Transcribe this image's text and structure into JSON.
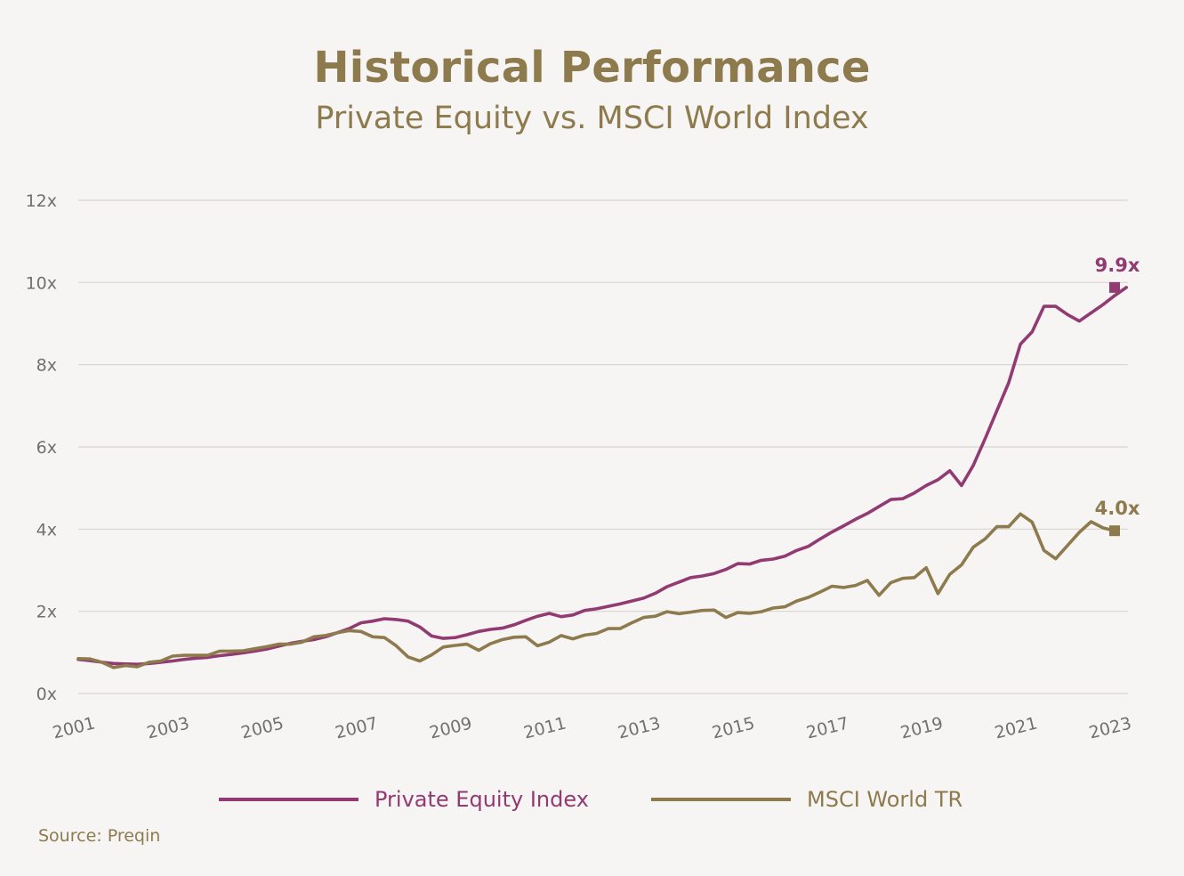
{
  "colors": {
    "background": "#f7f5f3",
    "accent_gold": "#8d7a4d",
    "accent_purple": "#923a72",
    "grid": "#d8d5cf",
    "axis_text": "#707070"
  },
  "chart_data": {
    "type": "line",
    "title": "Historical Performance",
    "subtitle": "Private Equity vs. MSCI World Index",
    "xlabel": "",
    "ylabel": "",
    "xlim": [
      2001,
      2023
    ],
    "ylim": [
      0,
      12
    ],
    "grid": true,
    "y_ticks": [
      {
        "value": 0,
        "label": "0x"
      },
      {
        "value": 2,
        "label": "2x"
      },
      {
        "value": 4,
        "label": "4x"
      },
      {
        "value": 6,
        "label": "6x"
      },
      {
        "value": 8,
        "label": "8x"
      },
      {
        "value": 10,
        "label": "10x"
      },
      {
        "value": 12,
        "label": "12x"
      }
    ],
    "x_ticks": [
      {
        "value": 2001,
        "label": "2001"
      },
      {
        "value": 2003,
        "label": "2003"
      },
      {
        "value": 2005,
        "label": "2005"
      },
      {
        "value": 2007,
        "label": "2007"
      },
      {
        "value": 2009,
        "label": "2009"
      },
      {
        "value": 2011,
        "label": "2011"
      },
      {
        "value": 2013,
        "label": "2013"
      },
      {
        "value": 2015,
        "label": "2015"
      },
      {
        "value": 2017,
        "label": "2017"
      },
      {
        "value": 2019,
        "label": "2019"
      },
      {
        "value": 2021,
        "label": "2021"
      },
      {
        "value": 2023,
        "label": "2023"
      }
    ],
    "legend_position": "bottom",
    "series": [
      {
        "name": "Private Equity Index",
        "color": "#923a72",
        "end_label": "9.9x",
        "points": [
          [
            2001.0,
            0.83
          ],
          [
            2001.25,
            0.8
          ],
          [
            2001.5,
            0.76
          ],
          [
            2001.75,
            0.73
          ],
          [
            2002.0,
            0.72
          ],
          [
            2002.25,
            0.71
          ],
          [
            2002.5,
            0.73
          ],
          [
            2002.75,
            0.76
          ],
          [
            2003.0,
            0.79
          ],
          [
            2003.25,
            0.83
          ],
          [
            2003.5,
            0.86
          ],
          [
            2003.75,
            0.88
          ],
          [
            2004.0,
            0.92
          ],
          [
            2004.25,
            0.95
          ],
          [
            2004.5,
            0.99
          ],
          [
            2004.75,
            1.03
          ],
          [
            2005.0,
            1.08
          ],
          [
            2005.25,
            1.15
          ],
          [
            2005.5,
            1.22
          ],
          [
            2005.75,
            1.27
          ],
          [
            2006.0,
            1.31
          ],
          [
            2006.25,
            1.38
          ],
          [
            2006.5,
            1.48
          ],
          [
            2006.75,
            1.58
          ],
          [
            2007.0,
            1.72
          ],
          [
            2007.25,
            1.76
          ],
          [
            2007.5,
            1.82
          ],
          [
            2007.75,
            1.8
          ],
          [
            2008.0,
            1.76
          ],
          [
            2008.25,
            1.62
          ],
          [
            2008.5,
            1.4
          ],
          [
            2008.75,
            1.34
          ],
          [
            2009.0,
            1.36
          ],
          [
            2009.25,
            1.43
          ],
          [
            2009.5,
            1.51
          ],
          [
            2009.75,
            1.56
          ],
          [
            2010.0,
            1.59
          ],
          [
            2010.25,
            1.67
          ],
          [
            2010.5,
            1.78
          ],
          [
            2010.75,
            1.88
          ],
          [
            2011.0,
            1.95
          ],
          [
            2011.25,
            1.87
          ],
          [
            2011.5,
            1.91
          ],
          [
            2011.75,
            2.02
          ],
          [
            2012.0,
            2.06
          ],
          [
            2012.25,
            2.12
          ],
          [
            2012.5,
            2.18
          ],
          [
            2012.75,
            2.25
          ],
          [
            2013.0,
            2.32
          ],
          [
            2013.25,
            2.44
          ],
          [
            2013.5,
            2.6
          ],
          [
            2013.75,
            2.71
          ],
          [
            2014.0,
            2.82
          ],
          [
            2014.25,
            2.86
          ],
          [
            2014.5,
            2.92
          ],
          [
            2014.75,
            3.02
          ],
          [
            2015.0,
            3.16
          ],
          [
            2015.25,
            3.15
          ],
          [
            2015.5,
            3.24
          ],
          [
            2015.75,
            3.27
          ],
          [
            2016.0,
            3.34
          ],
          [
            2016.25,
            3.48
          ],
          [
            2016.5,
            3.58
          ],
          [
            2016.75,
            3.76
          ],
          [
            2017.0,
            3.93
          ],
          [
            2017.25,
            4.08
          ],
          [
            2017.5,
            4.24
          ],
          [
            2017.75,
            4.38
          ],
          [
            2018.0,
            4.55
          ],
          [
            2018.25,
            4.72
          ],
          [
            2018.5,
            4.74
          ],
          [
            2018.75,
            4.88
          ],
          [
            2019.0,
            5.06
          ],
          [
            2019.25,
            5.2
          ],
          [
            2019.5,
            5.42
          ],
          [
            2019.75,
            5.06
          ],
          [
            2020.0,
            5.55
          ],
          [
            2020.25,
            6.2
          ],
          [
            2020.5,
            6.88
          ],
          [
            2020.75,
            7.56
          ],
          [
            2021.0,
            8.5
          ],
          [
            2021.25,
            8.8
          ],
          [
            2021.5,
            9.42
          ],
          [
            2021.75,
            9.42
          ],
          [
            2022.0,
            9.22
          ],
          [
            2022.25,
            9.06
          ],
          [
            2022.5,
            9.26
          ],
          [
            2022.75,
            9.46
          ],
          [
            2023.0,
            9.68
          ],
          [
            2023.25,
            9.88
          ]
        ]
      },
      {
        "name": "MSCI World TR",
        "color": "#8d7a4d",
        "end_label": "4.0x",
        "points": [
          [
            2001.0,
            0.85
          ],
          [
            2001.25,
            0.84
          ],
          [
            2001.5,
            0.76
          ],
          [
            2001.75,
            0.63
          ],
          [
            2002.0,
            0.68
          ],
          [
            2002.25,
            0.65
          ],
          [
            2002.5,
            0.76
          ],
          [
            2002.75,
            0.79
          ],
          [
            2003.0,
            0.91
          ],
          [
            2003.25,
            0.93
          ],
          [
            2003.5,
            0.93
          ],
          [
            2003.75,
            0.93
          ],
          [
            2004.0,
            1.03
          ],
          [
            2004.25,
            1.03
          ],
          [
            2004.5,
            1.04
          ],
          [
            2004.75,
            1.09
          ],
          [
            2005.0,
            1.14
          ],
          [
            2005.25,
            1.2
          ],
          [
            2005.5,
            1.2
          ],
          [
            2005.75,
            1.25
          ],
          [
            2006.0,
            1.38
          ],
          [
            2006.25,
            1.41
          ],
          [
            2006.5,
            1.48
          ],
          [
            2006.75,
            1.53
          ],
          [
            2007.0,
            1.51
          ],
          [
            2007.25,
            1.38
          ],
          [
            2007.5,
            1.36
          ],
          [
            2007.75,
            1.16
          ],
          [
            2008.0,
            0.89
          ],
          [
            2008.25,
            0.79
          ],
          [
            2008.5,
            0.94
          ],
          [
            2008.75,
            1.13
          ],
          [
            2009.0,
            1.17
          ],
          [
            2009.25,
            1.2
          ],
          [
            2009.5,
            1.05
          ],
          [
            2009.75,
            1.21
          ],
          [
            2010.0,
            1.31
          ],
          [
            2010.25,
            1.37
          ],
          [
            2010.5,
            1.38
          ],
          [
            2010.75,
            1.16
          ],
          [
            2011.0,
            1.25
          ],
          [
            2011.25,
            1.41
          ],
          [
            2011.5,
            1.33
          ],
          [
            2011.75,
            1.42
          ],
          [
            2012.0,
            1.46
          ],
          [
            2012.25,
            1.58
          ],
          [
            2012.5,
            1.58
          ],
          [
            2012.75,
            1.72
          ],
          [
            2013.0,
            1.85
          ],
          [
            2013.25,
            1.88
          ],
          [
            2013.5,
            1.99
          ],
          [
            2013.75,
            1.94
          ],
          [
            2014.0,
            1.98
          ],
          [
            2014.25,
            2.02
          ],
          [
            2014.5,
            2.03
          ],
          [
            2014.75,
            1.85
          ],
          [
            2015.0,
            1.97
          ],
          [
            2015.25,
            1.95
          ],
          [
            2015.5,
            1.99
          ],
          [
            2015.75,
            2.08
          ],
          [
            2016.0,
            2.11
          ],
          [
            2016.25,
            2.25
          ],
          [
            2016.5,
            2.34
          ],
          [
            2016.75,
            2.47
          ],
          [
            2017.0,
            2.61
          ],
          [
            2017.25,
            2.58
          ],
          [
            2017.5,
            2.63
          ],
          [
            2017.75,
            2.75
          ],
          [
            2018.0,
            2.39
          ],
          [
            2018.25,
            2.7
          ],
          [
            2018.5,
            2.8
          ],
          [
            2018.75,
            2.82
          ],
          [
            2019.0,
            3.06
          ],
          [
            2019.25,
            2.43
          ],
          [
            2019.5,
            2.9
          ],
          [
            2019.75,
            3.13
          ],
          [
            2020.0,
            3.56
          ],
          [
            2020.25,
            3.76
          ],
          [
            2020.5,
            4.06
          ],
          [
            2020.75,
            4.06
          ],
          [
            2021.0,
            4.37
          ],
          [
            2021.25,
            4.17
          ],
          [
            2021.5,
            3.48
          ],
          [
            2021.75,
            3.28
          ],
          [
            2022.0,
            3.6
          ],
          [
            2022.25,
            3.92
          ],
          [
            2022.5,
            4.18
          ],
          [
            2022.75,
            4.03
          ],
          [
            2023.0,
            3.96
          ]
        ]
      }
    ]
  },
  "source_text": "Source: Preqin"
}
